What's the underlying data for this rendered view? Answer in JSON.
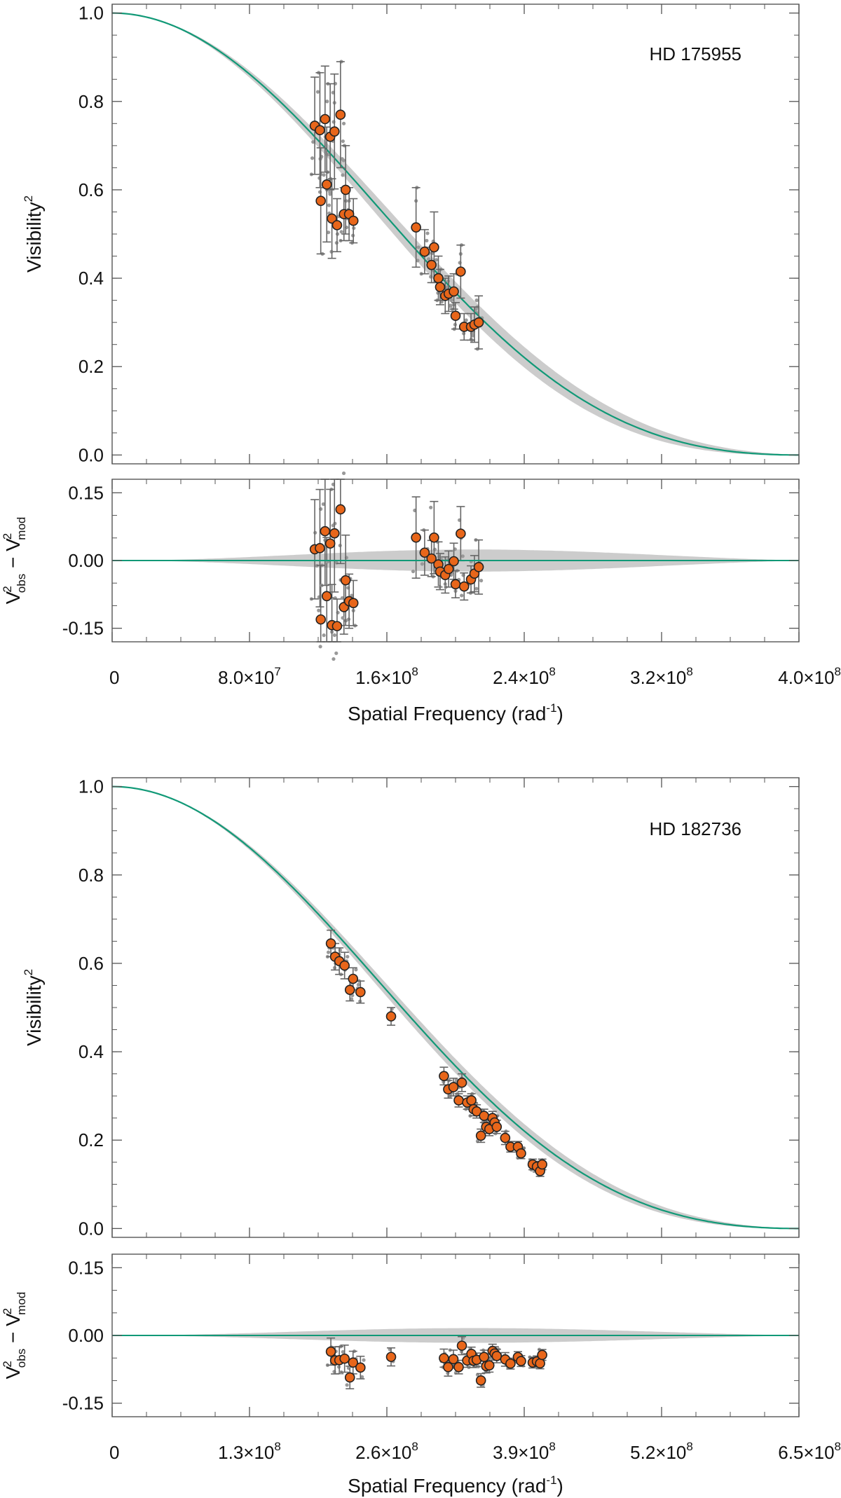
{
  "colors": {
    "model": "#119977",
    "band": "#cccccc",
    "point_fill": "#e8661a",
    "point_edge": "#222222",
    "raw": "#999999",
    "errbar": "#666666",
    "frame": "#555555"
  },
  "chart_data": [
    {
      "type": "scatter",
      "name": "panel-hd175955",
      "title": "HD 175955",
      "ylabel": "Visibility",
      "ylabel_sup": "2",
      "xlabel": "Spatial Frequency (rad",
      "xlabel_sup": "-1",
      "xlabel_tail": ")",
      "xlim": [
        0,
        400000000
      ],
      "ylim": [
        -0.02,
        1.02
      ],
      "res_ylim": [
        -0.18,
        0.18
      ],
      "res_ylabel": {
        "v": "V",
        "sup": "2",
        "obs": "obs",
        "minus": "−",
        "mod": "mod"
      },
      "yticks": [
        {
          "v": 0.0,
          "label": "0.0"
        },
        {
          "v": 0.2,
          "label": "0.2"
        },
        {
          "v": 0.4,
          "label": "0.4"
        },
        {
          "v": 0.6,
          "label": "0.6"
        },
        {
          "v": 0.8,
          "label": "0.8"
        },
        {
          "v": 1.0,
          "label": "1.0"
        }
      ],
      "res_yticks": [
        {
          "v": -0.15,
          "label": "-0.15"
        },
        {
          "v": 0.0,
          "label": "0.00"
        },
        {
          "v": 0.15,
          "label": "0.15"
        }
      ],
      "xticks": [
        {
          "v": 0,
          "mant": "0",
          "exp": ""
        },
        {
          "v": 80000000,
          "mant": "8.0×10",
          "exp": "7"
        },
        {
          "v": 160000000,
          "mant": "1.6×10",
          "exp": "8"
        },
        {
          "v": 240000000,
          "mant": "2.4×10",
          "exp": "8"
        },
        {
          "v": 320000000,
          "mant": "3.2×10",
          "exp": "8"
        },
        {
          "v": 400000000,
          "mant": "4.0×10",
          "exp": "8"
        }
      ],
      "x_minor_step": 20000000,
      "model": {
        "first_zero": 400000000,
        "band_frac": 0.03
      },
      "points": [
        {
          "x": 118000000,
          "y": 0.745,
          "e": 0.11
        },
        {
          "x": 121000000,
          "y": 0.735,
          "e": 0.13
        },
        {
          "x": 121500000,
          "y": 0.575,
          "e": 0.12
        },
        {
          "x": 124000000,
          "y": 0.76,
          "e": 0.12
        },
        {
          "x": 125000000,
          "y": 0.612,
          "e": 0.13
        },
        {
          "x": 127000000,
          "y": 0.72,
          "e": 0.12
        },
        {
          "x": 128000000,
          "y": 0.535,
          "e": 0.09
        },
        {
          "x": 129500000,
          "y": 0.732,
          "e": 0.13
        },
        {
          "x": 131000000,
          "y": 0.52,
          "e": 0.06
        },
        {
          "x": 133000000,
          "y": 0.77,
          "e": 0.12
        },
        {
          "x": 135000000,
          "y": 0.545,
          "e": 0.06
        },
        {
          "x": 136000000,
          "y": 0.6,
          "e": 0.1
        },
        {
          "x": 138000000,
          "y": 0.545,
          "e": 0.06
        },
        {
          "x": 140500000,
          "y": 0.53,
          "e": 0.05
        },
        {
          "x": 177000000,
          "y": 0.515,
          "e": 0.09
        },
        {
          "x": 182000000,
          "y": 0.46,
          "e": 0.05
        },
        {
          "x": 186000000,
          "y": 0.43,
          "e": 0.04
        },
        {
          "x": 187500000,
          "y": 0.47,
          "e": 0.08
        },
        {
          "x": 190000000,
          "y": 0.4,
          "e": 0.05
        },
        {
          "x": 191000000,
          "y": 0.38,
          "e": 0.04
        },
        {
          "x": 194000000,
          "y": 0.36,
          "e": 0.04
        },
        {
          "x": 196000000,
          "y": 0.365,
          "e": 0.04
        },
        {
          "x": 199000000,
          "y": 0.37,
          "e": 0.04
        },
        {
          "x": 200000000,
          "y": 0.315,
          "e": 0.03
        },
        {
          "x": 203000000,
          "y": 0.415,
          "e": 0.06
        },
        {
          "x": 205000000,
          "y": 0.29,
          "e": 0.03
        },
        {
          "x": 209000000,
          "y": 0.29,
          "e": 0.03
        },
        {
          "x": 211000000,
          "y": 0.295,
          "e": 0.04
        },
        {
          "x": 213500000,
          "y": 0.3,
          "e": 0.06
        }
      ]
    },
    {
      "type": "scatter",
      "name": "panel-hd182736",
      "title": "HD 182736",
      "ylabel": "Visibility",
      "ylabel_sup": "2",
      "xlabel": "Spatial Frequency (rad",
      "xlabel_sup": "-1",
      "xlabel_tail": ")",
      "xlim": [
        0,
        650000000
      ],
      "ylim": [
        -0.02,
        1.02
      ],
      "res_ylim": [
        -0.18,
        0.18
      ],
      "res_ylabel": {
        "v": "V",
        "sup": "2",
        "obs": "obs",
        "minus": "−",
        "mod": "mod"
      },
      "yticks": [
        {
          "v": 0.0,
          "label": "0.0"
        },
        {
          "v": 0.2,
          "label": "0.2"
        },
        {
          "v": 0.4,
          "label": "0.4"
        },
        {
          "v": 0.6,
          "label": "0.6"
        },
        {
          "v": 0.8,
          "label": "0.8"
        },
        {
          "v": 1.0,
          "label": "1.0"
        }
      ],
      "res_yticks": [
        {
          "v": -0.15,
          "label": "-0.15"
        },
        {
          "v": 0.0,
          "label": "0.00"
        },
        {
          "v": 0.15,
          "label": "0.15"
        }
      ],
      "xticks": [
        {
          "v": 0,
          "mant": "0",
          "exp": ""
        },
        {
          "v": 130000000,
          "mant": "1.3×10",
          "exp": "8"
        },
        {
          "v": 260000000,
          "mant": "2.6×10",
          "exp": "8"
        },
        {
          "v": 390000000,
          "mant": "3.9×10",
          "exp": "8"
        },
        {
          "v": 520000000,
          "mant": "5.2×10",
          "exp": "8"
        },
        {
          "v": 650000000,
          "mant": "6.5×10",
          "exp": "8"
        }
      ],
      "x_minor_step": 32500000,
      "model": {
        "first_zero": 650000000,
        "band_frac": 0.02
      },
      "points": [
        {
          "x": 207000000,
          "y": 0.645,
          "e": 0.03
        },
        {
          "x": 211000000,
          "y": 0.615,
          "e": 0.03
        },
        {
          "x": 215000000,
          "y": 0.605,
          "e": 0.03
        },
        {
          "x": 220000000,
          "y": 0.595,
          "e": 0.03
        },
        {
          "x": 225000000,
          "y": 0.54,
          "e": 0.025
        },
        {
          "x": 228000000,
          "y": 0.565,
          "e": 0.025
        },
        {
          "x": 235000000,
          "y": 0.535,
          "e": 0.025
        },
        {
          "x": 264000000,
          "y": 0.48,
          "e": 0.02
        },
        {
          "x": 314000000,
          "y": 0.345,
          "e": 0.02
        },
        {
          "x": 318000000,
          "y": 0.315,
          "e": 0.02
        },
        {
          "x": 323000000,
          "y": 0.32,
          "e": 0.02
        },
        {
          "x": 328000000,
          "y": 0.29,
          "e": 0.015
        },
        {
          "x": 331000000,
          "y": 0.33,
          "e": 0.02
        },
        {
          "x": 336000000,
          "y": 0.285,
          "e": 0.015
        },
        {
          "x": 340000000,
          "y": 0.29,
          "e": 0.015
        },
        {
          "x": 342000000,
          "y": 0.27,
          "e": 0.015
        },
        {
          "x": 345000000,
          "y": 0.265,
          "e": 0.015
        },
        {
          "x": 349000000,
          "y": 0.21,
          "e": 0.015
        },
        {
          "x": 352000000,
          "y": 0.255,
          "e": 0.015
        },
        {
          "x": 354000000,
          "y": 0.23,
          "e": 0.015
        },
        {
          "x": 357000000,
          "y": 0.225,
          "e": 0.015
        },
        {
          "x": 360000000,
          "y": 0.25,
          "e": 0.015
        },
        {
          "x": 362000000,
          "y": 0.24,
          "e": 0.015
        },
        {
          "x": 364000000,
          "y": 0.23,
          "e": 0.015
        },
        {
          "x": 372000000,
          "y": 0.205,
          "e": 0.015
        },
        {
          "x": 377000000,
          "y": 0.185,
          "e": 0.012
        },
        {
          "x": 384000000,
          "y": 0.185,
          "e": 0.012
        },
        {
          "x": 387000000,
          "y": 0.17,
          "e": 0.012
        },
        {
          "x": 398000000,
          "y": 0.145,
          "e": 0.012
        },
        {
          "x": 402000000,
          "y": 0.14,
          "e": 0.012
        },
        {
          "x": 405000000,
          "y": 0.13,
          "e": 0.012
        },
        {
          "x": 407000000,
          "y": 0.145,
          "e": 0.012
        }
      ]
    }
  ]
}
